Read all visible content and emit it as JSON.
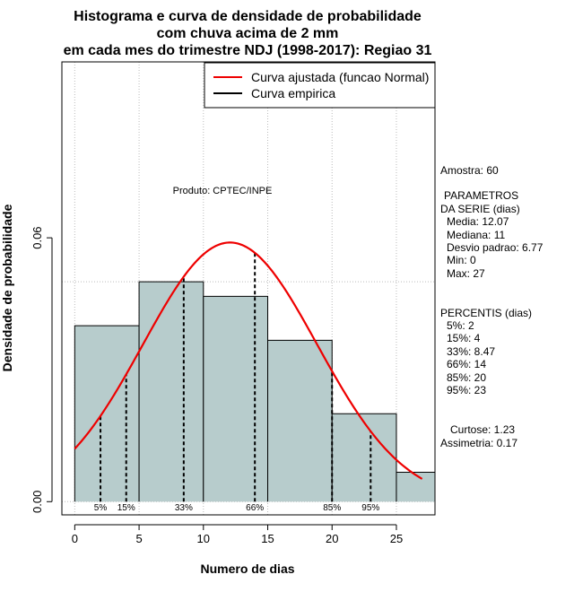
{
  "chart_data": {
    "type": "bar",
    "title_lines": [
      "Histograma e curva de densidade de probabilidade",
      "com chuva acima de 2 mm",
      "em cada mes do trimestre NDJ (1998-2017): Regiao 31"
    ],
    "xlabel": "Numero de dias",
    "ylabel": "Densidade de probabilidade",
    "xlim": [
      -1,
      28
    ],
    "ylim": [
      -0.003,
      0.1
    ],
    "x_ticks": [
      0,
      5,
      10,
      15,
      20,
      25
    ],
    "y_ticks": [
      0.0,
      0.06
    ],
    "y_tick_labels": [
      "0.00",
      "0.06"
    ],
    "hgrid": [
      0.0,
      0.05,
      0.1
    ],
    "vgrid": [
      0,
      5,
      10,
      15,
      20,
      25
    ],
    "bins": [
      {
        "from": 0,
        "to": 5,
        "density": 0.04
      },
      {
        "from": 5,
        "to": 10,
        "density": 0.05
      },
      {
        "from": 10,
        "to": 15,
        "density": 0.0467
      },
      {
        "from": 15,
        "to": 20,
        "density": 0.0367
      },
      {
        "from": 20,
        "to": 25,
        "density": 0.02
      },
      {
        "from": 25,
        "to": 30,
        "density": 0.0067
      }
    ],
    "normal_fit": {
      "mean": 12.07,
      "sd": 6.77,
      "x_from": 0,
      "x_to": 27
    },
    "percentile_lines": [
      {
        "label": "5%",
        "x": 2
      },
      {
        "label": "15%",
        "x": 4
      },
      {
        "label": "33%",
        "x": 8.47
      },
      {
        "label": "66%",
        "x": 14
      },
      {
        "label": "85%",
        "x": 20
      },
      {
        "label": "95%",
        "x": 23
      }
    ],
    "legend": {
      "position": "top-right",
      "entries": [
        {
          "label": "Curva ajustada (funcao Normal)",
          "color": "#ee0000"
        },
        {
          "label": "Curva empirica",
          "color": "#000000"
        }
      ]
    },
    "annotation": "Produto: CPTEC/INPE",
    "colors": {
      "bar_fill": "#b7cccc",
      "curve": "#ee0000",
      "grid": "#bbbbbb"
    }
  },
  "side_panel": {
    "amostra": "Amostra: 60",
    "params_header_1": "PARAMETROS",
    "params_header_2": "DA SERIE (dias)",
    "params": [
      "Media: 12.07",
      "Mediana: 11",
      "Desvio padrao: 6.77",
      "Min: 0",
      "Max: 27"
    ],
    "percentis_header": "PERCENTIS (dias)",
    "percentis": [
      "5%: 2",
      "15%: 4",
      "33%: 8.47",
      "66%: 14",
      "85%: 20",
      "95%: 23"
    ],
    "curtose": "Curtose: 1.23",
    "assimetria": "Assimetria: 0.17"
  }
}
